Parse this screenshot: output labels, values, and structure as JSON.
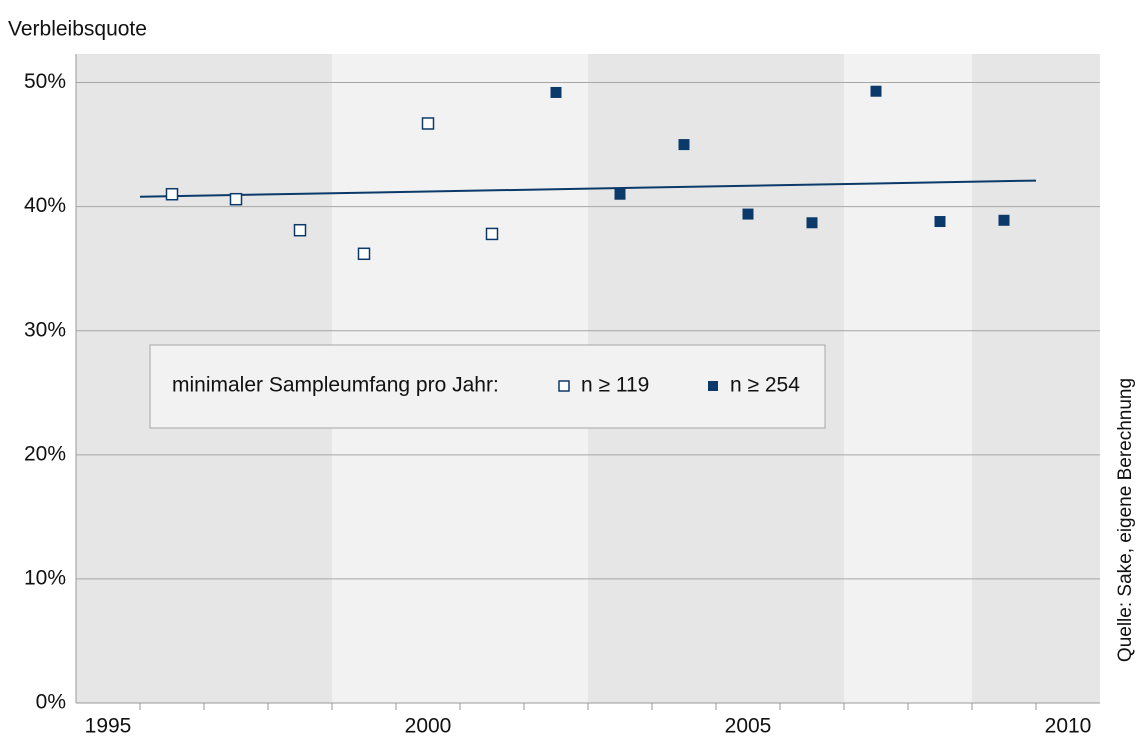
{
  "chart_data": {
    "type": "scatter",
    "y_axis_label": "Verbleibsquote",
    "source": "Quelle: Sake, eigene Berechnung",
    "legend_title": "minimaler Sampleumfang pro Jahr:",
    "series": [
      {
        "name": "n ≥ 119",
        "color": "#0b3a6a",
        "marker": "open",
        "x": [
          1996,
          1997,
          1998,
          1999,
          2000,
          2001
        ],
        "values": [
          41.0,
          40.6,
          38.1,
          36.2,
          46.7,
          37.8
        ]
      },
      {
        "name": "n ≥ 254",
        "color": "#0b3a6a",
        "marker": "filled",
        "x": [
          2002,
          2003,
          2004,
          2005,
          2006,
          2007,
          2008,
          2009
        ],
        "values": [
          49.2,
          41.0,
          45.0,
          39.4,
          38.7,
          49.3,
          38.8,
          38.9
        ]
      }
    ],
    "trendline": {
      "color": "#0b3a6a",
      "x": [
        1995.5,
        2009.5
      ],
      "values": [
        40.8,
        42.1
      ]
    },
    "background_bands": [
      {
        "from": 1994.5,
        "to": 1998.5,
        "color": "#e6e6e6"
      },
      {
        "from": 1998.5,
        "to": 2002.5,
        "color": "#f2f2f2"
      },
      {
        "from": 2002.5,
        "to": 2006.5,
        "color": "#e6e6e6"
      },
      {
        "from": 2006.5,
        "to": 2008.5,
        "color": "#f2f2f2"
      },
      {
        "from": 2008.5,
        "to": 2010.5,
        "color": "#e6e6e6"
      }
    ],
    "xlim": [
      1994.5,
      2010.5
    ],
    "xticks": [
      1995,
      2000,
      2005,
      2010
    ],
    "xminor_ticks": [
      1995.5,
      1996.5,
      1997.5,
      1998.5,
      1999.5,
      2000.5,
      2001.5,
      2002.5,
      2003.5,
      2004.5,
      2005.5,
      2006.5,
      2007.5,
      2008.5,
      2009.5
    ],
    "ylim": [
      0,
      52.3
    ],
    "yticks": [
      {
        "value": 0,
        "label": "0%"
      },
      {
        "value": 10,
        "label": "10%"
      },
      {
        "value": 20,
        "label": "20%"
      },
      {
        "value": 30,
        "label": "30%"
      },
      {
        "value": 40,
        "label": "40%"
      },
      {
        "value": 50,
        "label": "50%"
      }
    ],
    "grid": true,
    "legend_position": "center-left"
  }
}
